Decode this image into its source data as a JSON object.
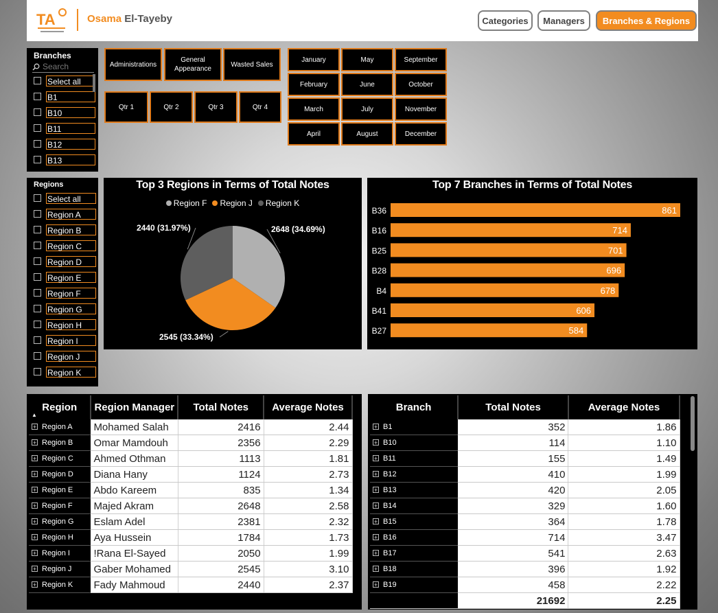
{
  "header": {
    "logo_text": "TA",
    "author_first": "Osama",
    "author_last": "El-Tayeby",
    "nav": [
      {
        "label": "Categories",
        "active": false
      },
      {
        "label": "Managers",
        "active": false
      },
      {
        "label": "Branches & Regions",
        "active": true
      }
    ]
  },
  "branches_slicer": {
    "title": "Branches",
    "search_placeholder": "Search",
    "items": [
      "Select all",
      "B1",
      "B10",
      "B11",
      "B12",
      "B13"
    ]
  },
  "regions_slicer": {
    "title": "Regions",
    "items": [
      "Select all",
      "Region A",
      "Region B",
      "Region C",
      "Region D",
      "Region E",
      "Region F",
      "Region G",
      "Region H",
      "Region I",
      "Region J",
      "Region K"
    ]
  },
  "categories": [
    "Administrations",
    "General Appearance",
    "Wasted Sales"
  ],
  "quarters": [
    "Qtr 1",
    "Qtr 2",
    "Qtr 3",
    "Qtr 4"
  ],
  "months": {
    "col1": [
      "January",
      "February",
      "March",
      "April"
    ],
    "col2": [
      "May",
      "June",
      "July",
      "August"
    ],
    "col3": [
      "September",
      "October",
      "November",
      "December"
    ]
  },
  "colors": {
    "accent": "#f28c20",
    "pie_f": "#b0b0b0",
    "pie_j": "#f28c20",
    "pie_k": "#5e5e5e",
    "bar": "#f28c20"
  },
  "chart_data": [
    {
      "type": "pie",
      "title": "Top 3 Regions in Terms of Total Notes",
      "categories": [
        "Region F",
        "Region J",
        "Region K"
      ],
      "values": [
        2648,
        2545,
        2440
      ],
      "labels": [
        "2648 (34.69%)",
        "2545 (33.34%)",
        "2440 (31.97%)"
      ],
      "legend": "top-center"
    },
    {
      "type": "bar",
      "orientation": "horizontal",
      "title": "Top 7 Branches in Terms of Total Notes",
      "categories": [
        "B36",
        "B16",
        "B25",
        "B28",
        "B4",
        "B41",
        "B27"
      ],
      "values": [
        861,
        714,
        701,
        696,
        678,
        606,
        584
      ],
      "xlim": [
        0,
        861
      ]
    }
  ],
  "region_table": {
    "headers": [
      "Region",
      "Region Manager",
      "Total Notes",
      "Average Notes"
    ],
    "rows": [
      [
        "Region A",
        "Mohamed Salah",
        "2416",
        "2.44"
      ],
      [
        "Region B",
        "Omar Mamdouh",
        "2356",
        "2.29"
      ],
      [
        "Region C",
        "Ahmed Othman",
        "1113",
        "1.81"
      ],
      [
        "Region D",
        "Diana Hany",
        "1124",
        "2.73"
      ],
      [
        "Region E",
        "Abdo Kareem",
        "835",
        "1.34"
      ],
      [
        "Region F",
        "Majed Akram",
        "2648",
        "2.58"
      ],
      [
        "Region G",
        "Eslam Adel",
        "2381",
        "2.32"
      ],
      [
        "Region H",
        "Aya Hussein",
        "1784",
        "1.73"
      ],
      [
        "Region I",
        "!Rana El-Sayed",
        "2050",
        "1.99"
      ],
      [
        "Region J",
        "Gaber Mohamed",
        "2545",
        "3.10"
      ],
      [
        "Region K",
        "Fady Mahmoud",
        "2440",
        "2.37"
      ]
    ]
  },
  "branch_table": {
    "headers": [
      "Branch",
      "Total Notes",
      "Average Notes"
    ],
    "rows": [
      [
        "B1",
        "352",
        "1.86"
      ],
      [
        "B10",
        "114",
        "1.10"
      ],
      [
        "B11",
        "155",
        "1.49"
      ],
      [
        "B12",
        "410",
        "1.99"
      ],
      [
        "B13",
        "420",
        "2.05"
      ],
      [
        "B14",
        "329",
        "1.60"
      ],
      [
        "B15",
        "364",
        "1.78"
      ],
      [
        "B16",
        "714",
        "3.47"
      ],
      [
        "B17",
        "541",
        "2.63"
      ],
      [
        "B18",
        "396",
        "1.92"
      ],
      [
        "B19",
        "458",
        "2.22"
      ]
    ],
    "total": [
      "",
      "21692",
      "2.25"
    ]
  }
}
